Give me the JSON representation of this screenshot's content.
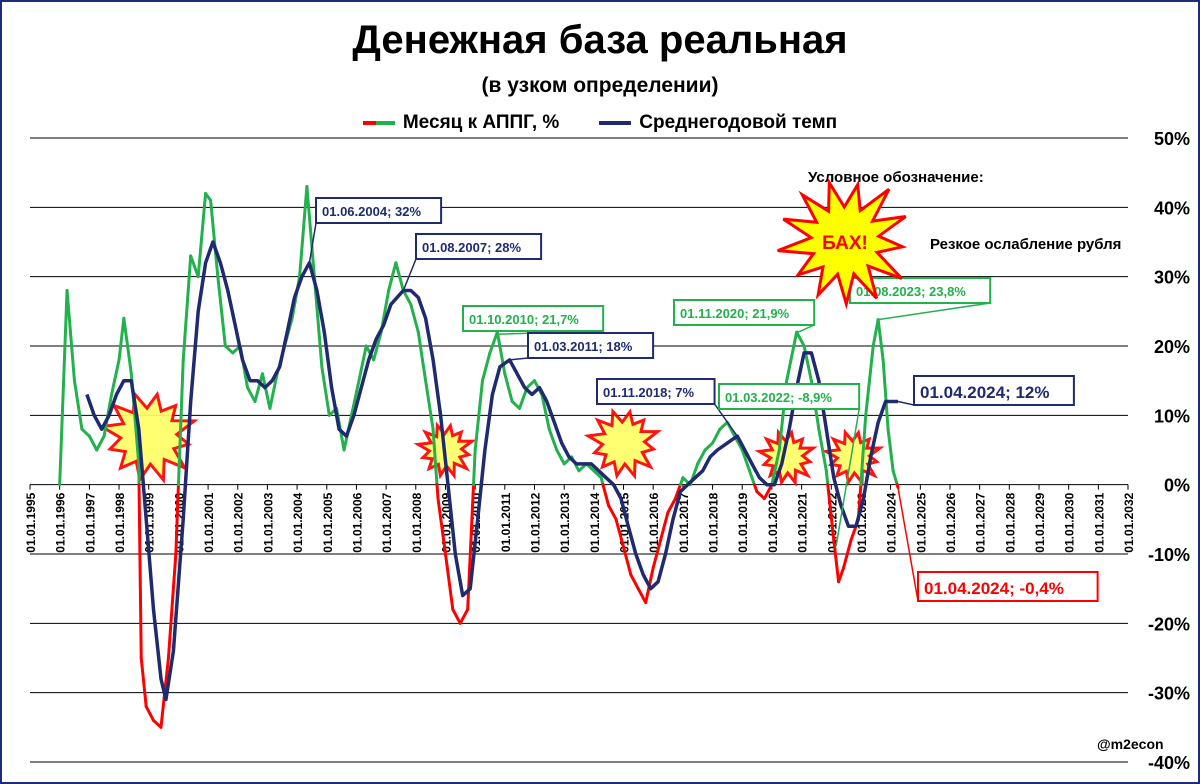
{
  "title": "Денежная база реальная",
  "subtitle": "(в узком определении)",
  "legend": [
    {
      "label": "Месяц к АППГ, %",
      "color": "#22b14c",
      "color_neg": "#ff0000"
    },
    {
      "label": "Среднегодовой темп",
      "color": "#1f2b6e"
    }
  ],
  "notation": {
    "heading": "Условное обозначение:",
    "burst_text": "БАХ!",
    "meaning": "Резкое ослабление рубля"
  },
  "watermark": "@m2econ",
  "chart_data": {
    "type": "line",
    "title": "Денежная база реальная",
    "subtitle": "(в узком определении)",
    "y_ticks": [
      "50%",
      "40%",
      "30%",
      "20%",
      "10%",
      "0%",
      "-10%",
      "-20%",
      "-30%",
      "-40%"
    ],
    "ylim": [
      -40,
      50
    ],
    "x_ticks": [
      "01.01.1995",
      "01.01.1996",
      "01.01.1997",
      "01.01.1998",
      "01.01.1999",
      "01.01.2000",
      "01.01.2001",
      "01.01.2002",
      "01.01.2003",
      "01.01.2004",
      "01.01.2005",
      "01.01.2006",
      "01.01.2007",
      "01.01.2008",
      "01.01.2009",
      "01.01.2010",
      "01.01.2011",
      "01.01.2012",
      "01.01.2013",
      "01.01.2014",
      "01.01.2015",
      "01.01.2016",
      "01.01.2017",
      "01.01.2018",
      "01.01.2019",
      "01.01.2020",
      "01.01.2021",
      "01.01.2022",
      "01.01.2023",
      "01.01.2024",
      "01.01.2025",
      "01.01.2026",
      "01.01.2027",
      "01.01.2028",
      "01.01.2029",
      "01.01.2030",
      "01.01.2031",
      "01.01.2032"
    ],
    "xlim": [
      "1995-01-01",
      "2032-01-01"
    ],
    "grid": true,
    "legend_position": "top",
    "series": [
      {
        "name": "Месяц к АППГ, %",
        "points": [
          [
            "1996-01-01",
            0
          ],
          [
            "1996-04-01",
            28
          ],
          [
            "1996-07-01",
            15
          ],
          [
            "1996-10-01",
            8
          ],
          [
            "1997-01-01",
            7
          ],
          [
            "1997-04-01",
            5
          ],
          [
            "1997-07-01",
            7
          ],
          [
            "1997-10-01",
            13
          ],
          [
            "1998-01-01",
            18
          ],
          [
            "1998-03-01",
            24
          ],
          [
            "1998-06-01",
            16
          ],
          [
            "1998-09-01",
            3
          ],
          [
            "1998-10-01",
            -25
          ],
          [
            "1998-12-01",
            -32
          ],
          [
            "1999-03-01",
            -34
          ],
          [
            "1999-06-01",
            -35
          ],
          [
            "1999-09-01",
            -25
          ],
          [
            "1999-12-01",
            -10
          ],
          [
            "2000-03-01",
            18
          ],
          [
            "2000-06-01",
            33
          ],
          [
            "2000-09-01",
            30
          ],
          [
            "2000-12-01",
            42
          ],
          [
            "2001-02-01",
            41
          ],
          [
            "2001-05-01",
            30
          ],
          [
            "2001-08-01",
            20
          ],
          [
            "2001-11-01",
            19
          ],
          [
            "2002-02-01",
            20
          ],
          [
            "2002-05-01",
            14
          ],
          [
            "2002-08-01",
            12
          ],
          [
            "2002-11-01",
            16
          ],
          [
            "2003-02-01",
            11
          ],
          [
            "2003-05-01",
            16
          ],
          [
            "2003-08-01",
            20
          ],
          [
            "2003-11-01",
            24
          ],
          [
            "2004-02-01",
            30
          ],
          [
            "2004-05-01",
            43
          ],
          [
            "2004-08-01",
            30
          ],
          [
            "2004-11-01",
            17
          ],
          [
            "2005-02-01",
            10
          ],
          [
            "2005-05-01",
            11
          ],
          [
            "2005-08-01",
            5
          ],
          [
            "2005-11-01",
            10
          ],
          [
            "2006-02-01",
            15
          ],
          [
            "2006-05-01",
            20
          ],
          [
            "2006-08-01",
            18
          ],
          [
            "2006-11-01",
            22
          ],
          [
            "2007-02-01",
            28
          ],
          [
            "2007-05-01",
            32
          ],
          [
            "2007-08-01",
            28
          ],
          [
            "2007-11-01",
            26
          ],
          [
            "2008-02-01",
            22
          ],
          [
            "2008-05-01",
            15
          ],
          [
            "2008-08-01",
            8
          ],
          [
            "2008-10-01",
            -2
          ],
          [
            "2009-01-01",
            -10
          ],
          [
            "2009-04-01",
            -18
          ],
          [
            "2009-07-01",
            -20
          ],
          [
            "2009-10-01",
            -18
          ],
          [
            "2010-01-01",
            5
          ],
          [
            "2010-04-01",
            15
          ],
          [
            "2010-07-01",
            19
          ],
          [
            "2010-10-01",
            22
          ],
          [
            "2011-01-01",
            16
          ],
          [
            "2011-04-01",
            12
          ],
          [
            "2011-07-01",
            11
          ],
          [
            "2011-10-01",
            14
          ],
          [
            "2012-01-01",
            15
          ],
          [
            "2012-04-01",
            13
          ],
          [
            "2012-07-01",
            8
          ],
          [
            "2012-10-01",
            5
          ],
          [
            "2013-01-01",
            3
          ],
          [
            "2013-04-01",
            4
          ],
          [
            "2013-07-01",
            2
          ],
          [
            "2013-10-01",
            3
          ],
          [
            "2014-01-01",
            2
          ],
          [
            "2014-04-01",
            1
          ],
          [
            "2014-07-01",
            -3
          ],
          [
            "2014-10-01",
            -5
          ],
          [
            "2015-01-01",
            -9
          ],
          [
            "2015-04-01",
            -13
          ],
          [
            "2015-07-01",
            -15
          ],
          [
            "2015-10-01",
            -17
          ],
          [
            "2016-01-01",
            -12
          ],
          [
            "2016-04-01",
            -8
          ],
          [
            "2016-07-01",
            -4
          ],
          [
            "2016-10-01",
            -2
          ],
          [
            "2017-01-01",
            1
          ],
          [
            "2017-04-01",
            0
          ],
          [
            "2017-07-01",
            3
          ],
          [
            "2017-10-01",
            5
          ],
          [
            "2018-01-01",
            6
          ],
          [
            "2018-04-01",
            8
          ],
          [
            "2018-07-01",
            9
          ],
          [
            "2018-10-01",
            7
          ],
          [
            "2019-01-01",
            5
          ],
          [
            "2019-04-01",
            2
          ],
          [
            "2019-07-01",
            -1
          ],
          [
            "2019-10-01",
            -2
          ],
          [
            "2020-01-01",
            0
          ],
          [
            "2020-04-01",
            5
          ],
          [
            "2020-07-01",
            15
          ],
          [
            "2020-11-01",
            22
          ],
          [
            "2021-02-01",
            20
          ],
          [
            "2021-05-01",
            15
          ],
          [
            "2021-08-01",
            8
          ],
          [
            "2021-11-01",
            2
          ],
          [
            "2022-02-01",
            -8
          ],
          [
            "2022-04-01",
            -14
          ],
          [
            "2022-06-01",
            -12
          ],
          [
            "2022-09-01",
            -8
          ],
          [
            "2022-12-01",
            -5
          ],
          [
            "2023-03-01",
            10
          ],
          [
            "2023-06-01",
            20
          ],
          [
            "2023-08-01",
            23.8
          ],
          [
            "2023-10-01",
            18
          ],
          [
            "2023-12-01",
            8
          ],
          [
            "2024-02-01",
            2
          ],
          [
            "2024-04-01",
            -0.4
          ]
        ]
      },
      {
        "name": "Среднегодовой темп",
        "points": [
          [
            "1996-12-01",
            13
          ],
          [
            "1997-03-01",
            10
          ],
          [
            "1997-06-01",
            8
          ],
          [
            "1997-09-01",
            10
          ],
          [
            "1997-12-01",
            13
          ],
          [
            "1998-03-01",
            15
          ],
          [
            "1998-06-01",
            15
          ],
          [
            "1998-09-01",
            8
          ],
          [
            "1998-12-01",
            -5
          ],
          [
            "1999-03-01",
            -18
          ],
          [
            "1999-06-01",
            -28
          ],
          [
            "1999-08-01",
            -31
          ],
          [
            "1999-11-01",
            -24
          ],
          [
            "2000-03-01",
            -5
          ],
          [
            "2000-06-01",
            12
          ],
          [
            "2000-09-01",
            25
          ],
          [
            "2000-12-01",
            32
          ],
          [
            "2001-03-01",
            35
          ],
          [
            "2001-06-01",
            32
          ],
          [
            "2001-09-01",
            28
          ],
          [
            "2001-12-01",
            23
          ],
          [
            "2002-03-01",
            18
          ],
          [
            "2002-06-01",
            15
          ],
          [
            "2002-09-01",
            15
          ],
          [
            "2002-12-01",
            14
          ],
          [
            "2003-03-01",
            15
          ],
          [
            "2003-06-01",
            17
          ],
          [
            "2003-09-01",
            22
          ],
          [
            "2003-12-01",
            27
          ],
          [
            "2004-03-01",
            30
          ],
          [
            "2004-06-01",
            32
          ],
          [
            "2004-09-01",
            28
          ],
          [
            "2004-12-01",
            22
          ],
          [
            "2005-03-01",
            14
          ],
          [
            "2005-06-01",
            8
          ],
          [
            "2005-09-01",
            7
          ],
          [
            "2005-12-01",
            10
          ],
          [
            "2006-03-01",
            14
          ],
          [
            "2006-06-01",
            18
          ],
          [
            "2006-09-01",
            21
          ],
          [
            "2006-12-01",
            23
          ],
          [
            "2007-03-01",
            26
          ],
          [
            "2007-08-01",
            28
          ],
          [
            "2007-11-01",
            28
          ],
          [
            "2008-02-01",
            27
          ],
          [
            "2008-05-01",
            24
          ],
          [
            "2008-08-01",
            18
          ],
          [
            "2008-11-01",
            10
          ],
          [
            "2009-02-01",
            0
          ],
          [
            "2009-05-01",
            -10
          ],
          [
            "2009-08-01",
            -16
          ],
          [
            "2009-11-01",
            -15
          ],
          [
            "2010-02-01",
            -5
          ],
          [
            "2010-05-01",
            5
          ],
          [
            "2010-08-01",
            13
          ],
          [
            "2010-11-01",
            17
          ],
          [
            "2011-03-01",
            18
          ],
          [
            "2011-06-01",
            16
          ],
          [
            "2011-09-01",
            14
          ],
          [
            "2011-12-01",
            13
          ],
          [
            "2012-03-01",
            14
          ],
          [
            "2012-06-01",
            12
          ],
          [
            "2012-09-01",
            9
          ],
          [
            "2012-12-01",
            6
          ],
          [
            "2013-03-01",
            4
          ],
          [
            "2013-06-01",
            3
          ],
          [
            "2013-09-01",
            3
          ],
          [
            "2013-12-01",
            3
          ],
          [
            "2014-03-01",
            2
          ],
          [
            "2014-06-01",
            1
          ],
          [
            "2014-09-01",
            0
          ],
          [
            "2014-12-01",
            -2
          ],
          [
            "2015-03-01",
            -6
          ],
          [
            "2015-06-01",
            -10
          ],
          [
            "2015-09-01",
            -13
          ],
          [
            "2015-12-01",
            -15
          ],
          [
            "2016-03-01",
            -14
          ],
          [
            "2016-06-01",
            -10
          ],
          [
            "2016-09-01",
            -5
          ],
          [
            "2016-12-01",
            -1
          ],
          [
            "2017-03-01",
            0
          ],
          [
            "2017-06-01",
            1
          ],
          [
            "2017-09-01",
            2
          ],
          [
            "2017-12-01",
            4
          ],
          [
            "2018-03-01",
            5
          ],
          [
            "2018-07-01",
            6
          ],
          [
            "2018-11-01",
            7
          ],
          [
            "2019-02-01",
            5
          ],
          [
            "2019-05-01",
            3
          ],
          [
            "2019-08-01",
            1
          ],
          [
            "2019-11-01",
            0
          ],
          [
            "2020-02-01",
            0
          ],
          [
            "2020-05-01",
            3
          ],
          [
            "2020-08-01",
            8
          ],
          [
            "2020-11-01",
            14
          ],
          [
            "2021-02-01",
            19
          ],
          [
            "2021-05-01",
            19
          ],
          [
            "2021-08-01",
            15
          ],
          [
            "2021-11-01",
            8
          ],
          [
            "2022-02-01",
            1
          ],
          [
            "2022-05-01",
            -3
          ],
          [
            "2022-08-01",
            -6
          ],
          [
            "2022-11-01",
            -6
          ],
          [
            "2023-02-01",
            -2
          ],
          [
            "2023-05-01",
            4
          ],
          [
            "2023-08-01",
            9
          ],
          [
            "2023-11-01",
            12
          ],
          [
            "2024-02-01",
            12
          ],
          [
            "2024-04-01",
            12
          ]
        ]
      }
    ],
    "annotations": [
      {
        "text": "01.06.2004; 32%",
        "date": "2004-06-01",
        "value": 32,
        "style": "navy"
      },
      {
        "text": "01.08.2007; 28%",
        "date": "2007-08-01",
        "value": 28,
        "style": "navy"
      },
      {
        "text": "01.10.2010; 21,7%",
        "date": "2010-10-01",
        "value": 21.7,
        "style": "green"
      },
      {
        "text": "01.03.2011; 18%",
        "date": "2011-03-01",
        "value": 18,
        "style": "navy"
      },
      {
        "text": "01.11.2018; 7%",
        "date": "2018-11-01",
        "value": 7,
        "style": "navy"
      },
      {
        "text": "01.11.2020; 21,9%",
        "date": "2020-11-01",
        "value": 21.9,
        "style": "green"
      },
      {
        "text": "01.03.2022; -8,9%",
        "date": "2022-03-01",
        "value": -8.9,
        "style": "green"
      },
      {
        "text": "01.08.2023; 23,8%",
        "date": "2023-08-01",
        "value": 23.8,
        "style": "green"
      },
      {
        "text": "01.04.2024; 12%",
        "date": "2024-04-01",
        "value": 12,
        "style": "navy-big"
      },
      {
        "text": "01.04.2024; -0,4%",
        "date": "2024-04-01",
        "value": -0.4,
        "style": "red-big"
      }
    ],
    "bursts": [
      {
        "date": "1999-01-01",
        "value": 7,
        "size": "large"
      },
      {
        "date": "2009-01-01",
        "value": 5,
        "size": "small"
      },
      {
        "date": "2015-01-01",
        "value": 6,
        "size": "medium"
      },
      {
        "date": "2020-07-01",
        "value": 4,
        "size": "small"
      },
      {
        "date": "2022-10-01",
        "value": 4,
        "size": "small"
      }
    ]
  }
}
